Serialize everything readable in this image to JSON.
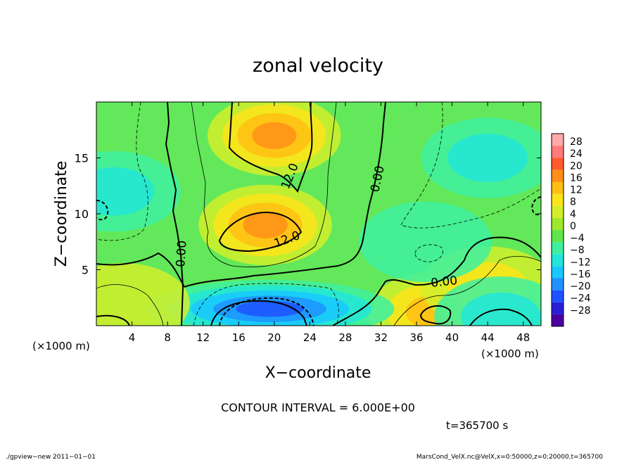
{
  "chart_data": {
    "type": "heatmap",
    "title": "zonal velocity",
    "xlabel": "X−coordinate",
    "ylabel": "Z−coordinate",
    "x_unit": "(×1000 m)",
    "y_unit": "(×1000 m)",
    "xlim": [
      0,
      50
    ],
    "ylim": [
      0,
      20
    ],
    "x_ticks": [
      4,
      8,
      12,
      16,
      20,
      24,
      28,
      32,
      36,
      40,
      44,
      48
    ],
    "y_ticks": [
      5,
      10,
      15
    ],
    "x_tick_labels": [
      "4",
      "8",
      "12",
      "16",
      "20",
      "24",
      "28",
      "32",
      "36",
      "40",
      "44",
      "48"
    ],
    "y_tick_labels": [
      "5",
      "10",
      "15"
    ],
    "contour_interval_text": "CONTOUR INTERVAL = 6.000E+00",
    "contour_labels": [
      "12.0",
      "12.0",
      "0.00",
      "0.00",
      "0.00"
    ],
    "time_label": "t=365700 s",
    "footer_left": "./gpview−new   2011−01−01",
    "footer_right": "MarsCond_VelX.nc@VelX,x=0:50000,z=0:20000,t=365700",
    "colorbar": {
      "levels": [
        -28,
        -24,
        -20,
        -16,
        -12,
        -8,
        -4,
        0,
        4,
        8,
        12,
        16,
        20,
        24,
        28
      ],
      "labels": [
        "28",
        "24",
        "20",
        "16",
        "12",
        "8",
        "4",
        "0",
        "−4",
        "−8",
        "−12",
        "−16",
        "−20",
        "−24",
        "−28"
      ],
      "colors": [
        "#4a009e",
        "#2a1fd6",
        "#1f52ff",
        "#1f92ff",
        "#18c8ff",
        "#22e6d8",
        "#3ff0a0",
        "#5ee64a",
        "#9ee82c",
        "#d2ee2a",
        "#fbe41a",
        "#ffbe14",
        "#ff8f18",
        "#ff5a2e",
        "#ff7a7a",
        "#ffaaaa"
      ]
    },
    "field_features": [
      {
        "type": "max",
        "x": 20,
        "z": 17,
        "value": 16
      },
      {
        "type": "max",
        "x": 19,
        "z": 9,
        "value": 18
      },
      {
        "type": "max",
        "x": 38,
        "z": 1.2,
        "value": 14
      },
      {
        "type": "max",
        "x": 44,
        "z": 3.5,
        "value": 8
      },
      {
        "type": "min",
        "x": 19.5,
        "z": 1.5,
        "value": -20
      },
      {
        "type": "min",
        "x": 2,
        "z": 12,
        "value": -10
      },
      {
        "type": "min",
        "x": 44,
        "z": 15,
        "value": -10
      },
      {
        "type": "min",
        "x": 37,
        "z": 7.5,
        "value": -6
      },
      {
        "type": "min",
        "x": 45.5,
        "z": 0.8,
        "value": -8
      },
      {
        "type": "max",
        "x": 3,
        "z": 2,
        "value": 6
      }
    ]
  }
}
